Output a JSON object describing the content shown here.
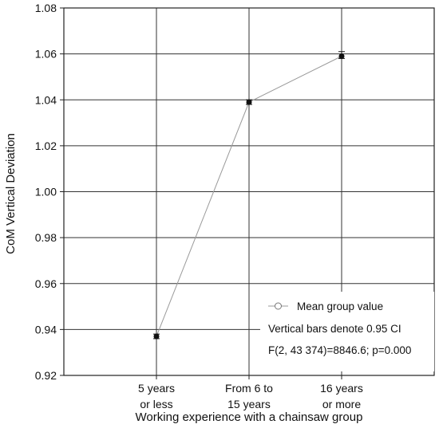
{
  "chart_data": {
    "type": "line",
    "categories": [
      [
        "5 years",
        "or less"
      ],
      [
        "From 6 to",
        "15 years"
      ],
      [
        "16 years",
        "or more"
      ]
    ],
    "series": [
      {
        "values": [
          0.937,
          1.039,
          1.059
        ],
        "ci_lower": [
          0.936,
          1.038,
          1.058
        ],
        "ci_upper": [
          0.938,
          1.04,
          1.061
        ]
      }
    ],
    "ylim": [
      0.92,
      1.08
    ],
    "yticks": [
      "0.92",
      "0.94",
      "0.96",
      "0.98",
      "1.00",
      "1.02",
      "1.04",
      "1.06",
      "1.08"
    ],
    "xlabel": "Working experience with a chainsaw group",
    "ylabel": "CoM Vertical Deviation",
    "grid": true,
    "legend": {
      "placement": "bottom-right",
      "marker_label": "Mean group value",
      "lines": [
        "Vertical bars denote 0.95 CI",
        "F(2, 43 374)=8846.6; p=0.000"
      ]
    },
    "colors": {
      "line": "#9a9a9a",
      "marker": "#111111",
      "grid": "#333333",
      "axis": "#222222"
    }
  }
}
